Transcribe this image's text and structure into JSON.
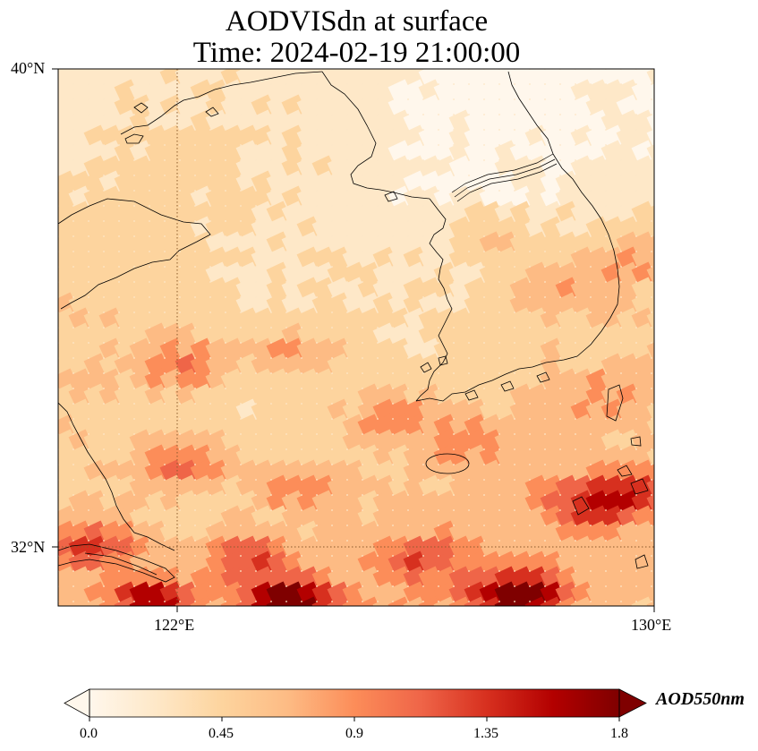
{
  "title": {
    "line1": "AODVISdn at surface",
    "line2": "Time: 2024-02-19 21:00:00"
  },
  "axes": {
    "lat_ticks": [
      "40°N",
      "32°N"
    ],
    "lon_ticks": [
      "122°E",
      "130°E"
    ],
    "lat_range": [
      31,
      40
    ],
    "lon_range": [
      120,
      130
    ]
  },
  "colorbar": {
    "label": "AOD550nm",
    "ticks": [
      "0.0",
      "0.45",
      "0.9",
      "1.35",
      "1.8"
    ],
    "min": 0.0,
    "max": 1.8,
    "colormap": "OrRd",
    "extend": "both",
    "colors": [
      "#fff7ec",
      "#fee8c8",
      "#fdd49e",
      "#fdbb84",
      "#fc8d59",
      "#ef6548",
      "#d7301f",
      "#b30000",
      "#7f0000"
    ]
  },
  "gridlines": {
    "style": "dotted",
    "color": "#8b5a2b"
  }
}
